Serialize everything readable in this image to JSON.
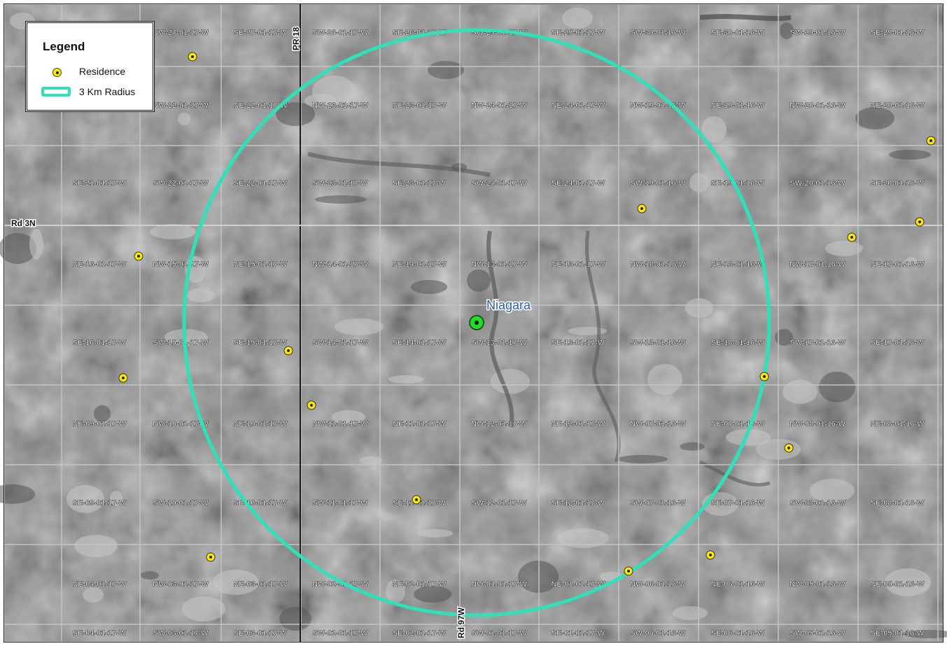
{
  "legend": {
    "title": "Legend",
    "items": [
      {
        "label": "Residence",
        "symbol": "residence-icon"
      },
      {
        "label": "3 Km Radius",
        "symbol": "radius-swatch"
      }
    ]
  },
  "colors": {
    "radius": "#2fe0b8",
    "residence": "#ffe800",
    "site": "#22dd22",
    "site_label": "#2b5fa8",
    "grid": "#bdbdbd",
    "label": "#ffffff"
  },
  "site": {
    "label": "Niagara"
  },
  "roads": [
    {
      "label": "PR 18"
    },
    {
      "label": "Rd 3N"
    },
    {
      "label": "Rd 97W"
    }
  ],
  "parcels": [
    [
      "",
      "NW-27-01-17-W",
      "SE-27-01-17-W",
      "SW-26-01-17-W",
      "SE-26-01-17-W",
      "SW-25-01-17-W",
      "SE-25-01-17-W",
      "SW-30-01-16-W",
      "SE-30-01-16-W",
      "SW-29-01-16-W",
      "SE-29-01-16-W"
    ],
    [
      "",
      "NW-22-01-17-W",
      "NE-22-01-17-W",
      "NW-23-01-17-W",
      "NE-23-01-17-W",
      "NW-24-01-17-W",
      "NE-24-01-17-W",
      "NW-19-01-16-W",
      "NE-19-01-16-W",
      "NW-20-01-16-W",
      "NE-20-01-16-W"
    ],
    [
      "SE-21-01-17-W",
      "SW-22-01-17-W",
      "SE-22-01-17-W",
      "SW-23-01-17-W",
      "SE-23-01-17-W",
      "SW-24-01-17-W",
      "SE-24-01-17-W",
      "SW-19-01-16-W",
      "SE-19-01-16-W",
      "SW-20-01-16-W",
      "SE-20-01-16-W"
    ],
    [
      "NE-16-01-17-W",
      "NW-15-01-17-W",
      "NE-15-01-17-W",
      "NW-14-01-17-W",
      "NE-14-01-17-W",
      "NW-13-01-17-W",
      "NE-13-01-17-W",
      "NW-18-01-16-W",
      "NE-18-01-16-W",
      "NW-17-01-16-W",
      "NE-17-01-16-W"
    ],
    [
      "SE-16-01-17-W",
      "SW-15-01-17-W",
      "SE-15-01-17-W",
      "SW-14-01-17-W",
      "SE-14-01-17-W",
      "SW-13-01-17-W",
      "SE-13-01-17-W",
      "SW-18-01-16-W",
      "SE-18-01-16-W",
      "SW-17-01-16-W",
      "SE-17-01-16-W"
    ],
    [
      "NE-09-01-17-W",
      "NW-10-01-17-W",
      "NE-10-01-17-W",
      "NW-11-01-17-W",
      "NE-11-01-17-W",
      "NW-12-01-17-W",
      "NE-12-01-17-W",
      "NW-07-01-16-W",
      "NE-07-01-16-W",
      "NW-08-01-16-W",
      "NE-08-01-16-W"
    ],
    [
      "SE-09-01-17-W",
      "SW-10-01-17-W",
      "SE-10-01-17-W",
      "SW-11-01-17-W",
      "SE-11-01-17-W",
      "SW-12-01-17-W",
      "SE-12-01-17-W",
      "SW-07-01-16-W",
      "SE-07-01-16-W",
      "SW-08-01-16-W",
      "SE-08-01-16-W"
    ],
    [
      "NE-04-01-17-W",
      "NW-03-01-17-W",
      "NE-03-01-17-W",
      "NW-02-01-17-W",
      "NE-02-01-17-W",
      "NW-01-01-17-W",
      "NE-01-01-17-W",
      "NW-06-01-16-W",
      "NE-06-01-16-W",
      "NW-05-01-16-W",
      "NE-05-01-16-W"
    ],
    [
      "SE-04-01-17-W",
      "SW-03-01-17-W",
      "SE-03-01-17-W",
      "SW-02-01-17-W",
      "SE-02-01-17-W",
      "SW-01-01-17-W",
      "SE-01-01-17-W",
      "SW-06-01-16-W",
      "SE-06-01-16-W",
      "SW-05-01-16-W",
      "SE-05-01-16-W"
    ]
  ],
  "residence_count": 17
}
